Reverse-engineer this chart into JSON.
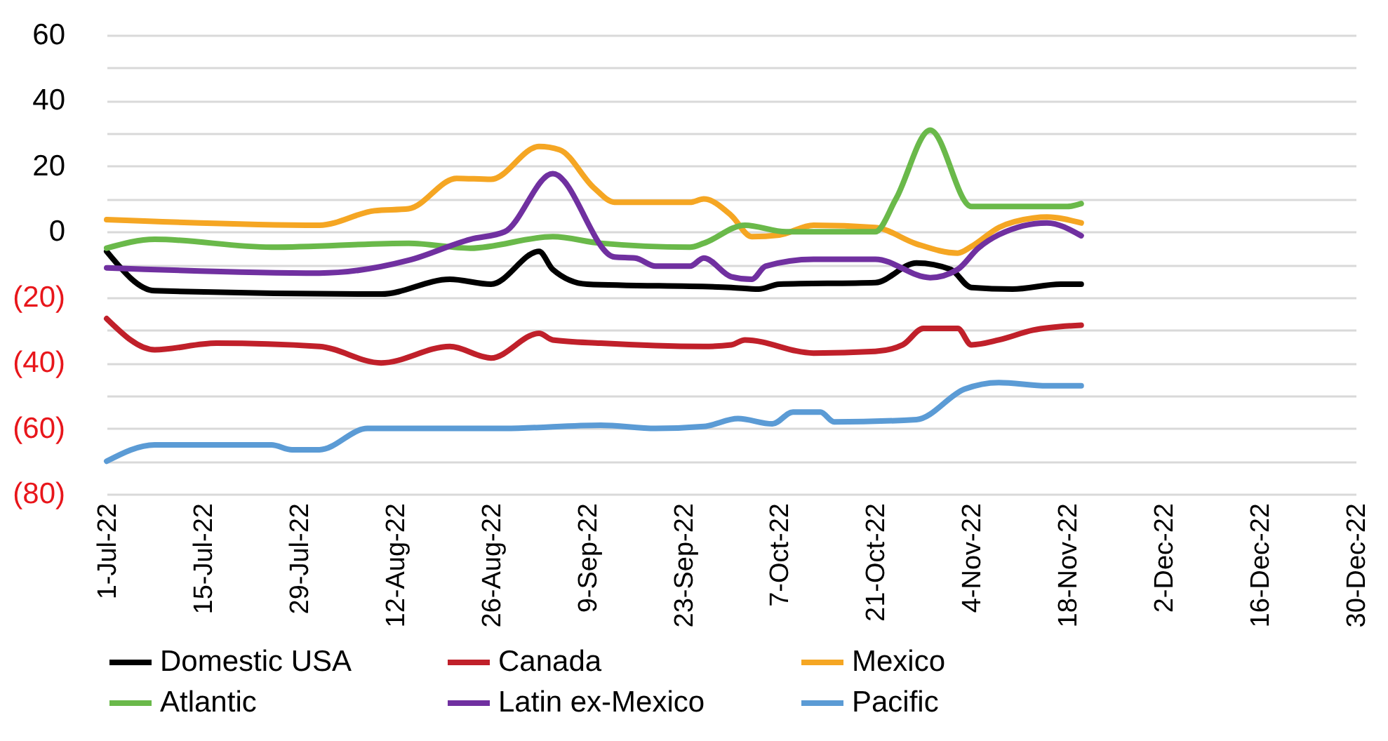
{
  "chart_data": {
    "type": "line",
    "xlim": [
      "--07-01",
      "--12-30"
    ],
    "xticks": [
      {
        "value": "--07-01",
        "label": "1-Jul-22"
      },
      {
        "value": "--07-15",
        "label": "15-Jul-22"
      },
      {
        "value": "--07-29",
        "label": "29-Jul-22"
      },
      {
        "value": "--08-12",
        "label": "12-Aug-22"
      },
      {
        "value": "--08-26",
        "label": "26-Aug-22"
      },
      {
        "value": "--09-09",
        "label": "9-Sep-22"
      },
      {
        "value": "--09-23",
        "label": "23-Sep-22"
      },
      {
        "value": "--10-07",
        "label": "7-Oct-22"
      },
      {
        "value": "--10-21",
        "label": "21-Oct-22"
      },
      {
        "value": "--11-04",
        "label": "4-Nov-22"
      },
      {
        "value": "--11-18",
        "label": "18-Nov-22"
      },
      {
        "value": "--12-02",
        "label": "2-Dec-22"
      },
      {
        "value": "--12-16",
        "label": "16-Dec-22"
      },
      {
        "value": "--12-30",
        "label": "30-Dec-22"
      }
    ],
    "ylim": [
      -80,
      60
    ],
    "yticks": [
      {
        "value": -80,
        "label": "(80)"
      },
      {
        "value": -70,
        "label": null
      },
      {
        "value": -60,
        "label": "(60)"
      },
      {
        "value": -50,
        "label": null
      },
      {
        "value": -40,
        "label": "(40)"
      },
      {
        "value": -30,
        "label": null
      },
      {
        "value": -20,
        "label": "(20)"
      },
      {
        "value": -10,
        "label": null
      },
      0,
      {
        "value": 10,
        "label": null
      },
      20,
      {
        "value": 30,
        "label": null
      },
      40,
      {
        "value": 50,
        "label": null
      },
      60
    ],
    "grid": "y",
    "legend": "bottom",
    "marker": "none",
    "line_style": "solid",
    "series": [
      {
        "name": "Domestic USA",
        "color": "#000000",
        "x": [
          "--07-01",
          "--07-08",
          "--08-10",
          "--08-20",
          "--08-26",
          "--09-02",
          "--09-04",
          "--09-09",
          "--09-30",
          "--10-04",
          "--10-07",
          "--10-21",
          "--10-27",
          "--11-01",
          "--11-04",
          "--11-10",
          "--11-17",
          "--11-20"
        ],
        "values": [
          -6,
          -18,
          -19,
          -14.5,
          -16,
          -6,
          -11.5,
          -16,
          -17,
          -17.5,
          -16,
          -15.5,
          -9.5,
          -11.5,
          -17,
          -17.5,
          -16,
          -16
        ]
      },
      {
        "name": "Canada",
        "color": "#c0202a",
        "x": [
          "--07-01",
          "--07-08",
          "--07-17",
          "--08-01",
          "--08-10",
          "--08-20",
          "--08-26",
          "--09-02",
          "--09-04",
          "--09-11",
          "--09-26",
          "--09-30",
          "--10-02",
          "--10-12",
          "--10-21",
          "--10-25",
          "--10-28",
          "--11-02",
          "--11-04",
          "--11-08",
          "--11-13",
          "--11-20"
        ],
        "values": [
          -26.5,
          -36,
          -34,
          -35,
          -40,
          -35,
          -38.5,
          -31,
          -33,
          -34,
          -35,
          -34.5,
          -33,
          -37,
          -36.5,
          -34.5,
          -29.5,
          -29.5,
          -34.5,
          -33,
          -30,
          -28.5
        ]
      },
      {
        "name": "Mexico",
        "color": "#f5a623",
        "x": [
          "--07-01",
          "--08-01",
          "--08-09",
          "--08-14",
          "--08-21",
          "--08-26",
          "--09-02",
          "--09-05",
          "--09-10",
          "--09-13",
          "--09-24",
          "--09-26",
          "--09-30",
          "--10-03",
          "--10-07",
          "--10-12",
          "--10-21",
          "--10-27",
          "--11-02",
          "--11-04",
          "--11-08",
          "--11-13",
          "--11-15",
          "--11-20"
        ],
        "values": [
          3.7,
          2,
          6.4,
          7,
          16.3,
          16,
          26,
          25,
          13.4,
          9,
          9,
          10,
          5,
          -1.5,
          -1,
          2,
          1.3,
          -3.7,
          -6.5,
          -4.5,
          1.3,
          4.2,
          4.5,
          2.7
        ]
      },
      {
        "name": "Atlantic",
        "color": "#6ab94a",
        "x": [
          "--07-01",
          "--07-08",
          "--07-25",
          "--08-14",
          "--08-23",
          "--09-04",
          "--09-11",
          "--09-24",
          "--09-26",
          "--10-02",
          "--10-08",
          "--10-21",
          "--10-24",
          "--10-29",
          "--11-04",
          "--11-08",
          "--11-18",
          "--11-20"
        ],
        "values": [
          -5,
          -2.3,
          -4.7,
          -3.5,
          -5,
          -1.5,
          -3.5,
          -4.7,
          -3.5,
          2,
          0,
          0,
          10,
          31,
          7.7,
          7.7,
          7.7,
          8.6
        ]
      },
      {
        "name": "Latin ex-Mexico",
        "color": "#7030a0",
        "x": [
          "--07-01",
          "--08-01",
          "--08-14",
          "--08-23",
          "--08-28",
          "--09-04",
          "--09-13",
          "--09-16",
          "--09-19",
          "--09-24",
          "--09-26",
          "--09-30",
          "--10-03",
          "--10-05",
          "--10-12",
          "--10-21",
          "--10-29",
          "--11-02",
          "--11-05",
          "--11-08",
          "--11-15",
          "--11-20"
        ],
        "values": [
          -11,
          -12.6,
          -8.7,
          -2.3,
          0,
          17.7,
          -7.7,
          -8,
          -10.5,
          -10.5,
          -8,
          -13.7,
          -14.5,
          -10.5,
          -8.4,
          -8.4,
          -14,
          -11.5,
          -5,
          -0.9,
          2.7,
          -1.2
        ]
      },
      {
        "name": "Pacific",
        "color": "#5b9bd5",
        "x": [
          "--07-01",
          "--07-08",
          "--07-25",
          "--07-28",
          "--08-01",
          "--08-08",
          "--08-28",
          "--09-11",
          "--09-19",
          "--09-26",
          "--10-01",
          "--10-06",
          "--10-09",
          "--10-13",
          "--10-15",
          "--10-27",
          "--11-03",
          "--11-08",
          "--11-15",
          "--11-20"
        ],
        "values": [
          -70,
          -65,
          -65,
          -66.5,
          -66.5,
          -60,
          -60,
          -59,
          -60,
          -59.4,
          -57,
          -58.6,
          -55,
          -55,
          -58,
          -57.3,
          -48,
          -46,
          -47,
          -47
        ]
      }
    ]
  }
}
